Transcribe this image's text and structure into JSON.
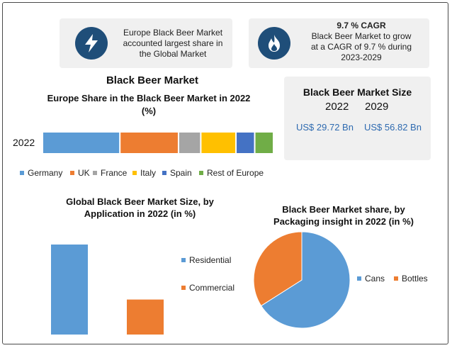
{
  "info_left": {
    "text_lines": [
      "Europe Black Beer Market",
      "accounted largest share in",
      "the Global Market"
    ],
    "icon": "lightning-icon"
  },
  "info_right": {
    "headline": "9.7 % CAGR",
    "text_lines": [
      "Black Beer Market to grow",
      "at a CAGR of 9.7 % during",
      "2023-2029"
    ],
    "icon": "flame-icon"
  },
  "market_size": {
    "title": "Black Beer Market Size",
    "years": [
      "2022",
      "2029"
    ],
    "values": [
      "US$ 29.72 Bn",
      "US$ 56.82 Bn"
    ]
  },
  "colors": {
    "accent": "#1f4e79",
    "value_text": "#2e6ab0",
    "panel_bg": "#f0f0f0"
  },
  "main_title": "Black Beer Market",
  "chart_data": [
    {
      "type": "bar",
      "orientation": "horizontal-stacked",
      "title": "Europe Share in the Black Beer Market in 2022 (%)",
      "categories": [
        "2022"
      ],
      "series": [
        {
          "name": "Germany",
          "values": [
            33
          ],
          "color": "#5b9bd5"
        },
        {
          "name": "UK",
          "values": [
            25
          ],
          "color": "#ed7d31"
        },
        {
          "name": "France",
          "values": [
            9.5
          ],
          "color": "#a5a5a5"
        },
        {
          "name": "Italy",
          "values": [
            15
          ],
          "color": "#ffc000"
        },
        {
          "name": "Spain",
          "values": [
            8
          ],
          "color": "#4472c4"
        },
        {
          "name": "Rest of Europe",
          "values": [
            8
          ],
          "color": "#70ad47"
        }
      ],
      "legend": "bottom"
    },
    {
      "type": "bar",
      "title": "Global Black Beer Market Size, by Application in 2022 (in %)",
      "series": [
        {
          "name": "Residential",
          "values": [
            72
          ],
          "color": "#5b9bd5"
        },
        {
          "name": "Commercial",
          "values": [
            28
          ],
          "color": "#ed7d31"
        }
      ],
      "ylim": [
        0,
        72
      ],
      "legend": "right"
    },
    {
      "type": "pie",
      "title": "Black Beer Market share, by Packaging insight in 2022 (in %)",
      "series": [
        {
          "name": "Cans",
          "values": [
            66
          ],
          "color": "#5b9bd5"
        },
        {
          "name": "Bottles",
          "values": [
            34
          ],
          "color": "#ed7d31"
        }
      ],
      "legend": "right"
    }
  ]
}
